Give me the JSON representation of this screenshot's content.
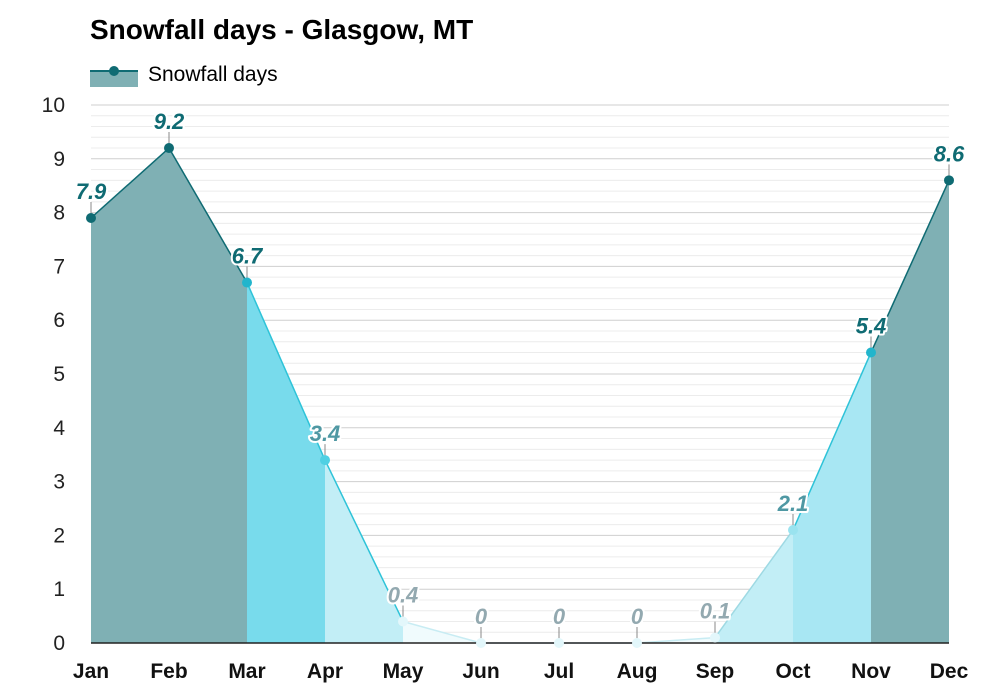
{
  "chart_data": {
    "type": "area",
    "title": "Snowfall days - Glasgow, MT",
    "legend": {
      "label": "Snowfall days",
      "placement": "top-left"
    },
    "categories": [
      "Jan",
      "Feb",
      "Mar",
      "Apr",
      "May",
      "Jun",
      "Jul",
      "Aug",
      "Sep",
      "Oct",
      "Nov",
      "Dec"
    ],
    "series": [
      {
        "name": "Snowfall days",
        "values": [
          7.9,
          9.2,
          6.7,
          3.4,
          0.4,
          0,
          0,
          0,
          0.1,
          2.1,
          5.4,
          8.6
        ]
      }
    ],
    "data_labels": [
      "7.9",
      "9.2",
      "6.7",
      "3.4",
      "0.4",
      "0",
      "0",
      "0",
      "0.1",
      "2.1",
      "5.4",
      "8.6"
    ],
    "ylim": [
      0,
      10
    ],
    "yticks": [
      "0",
      "1",
      "2",
      "3",
      "4",
      "5",
      "6",
      "7",
      "8",
      "9",
      "10"
    ],
    "grid": true,
    "colors": {
      "very_high": "#7fb0b4",
      "high": "#78dbec",
      "medium": "#a8e7f3",
      "low": "#f0fbfd",
      "line_dark": "#0f6b73",
      "line_mid": "#2ec3d8",
      "line_light": "#9ed9e3",
      "label_dark": "#0f6b73",
      "label_mid": "#4f98a3",
      "label_light": "#93a9b0",
      "grid": "#d9d9d9"
    }
  }
}
